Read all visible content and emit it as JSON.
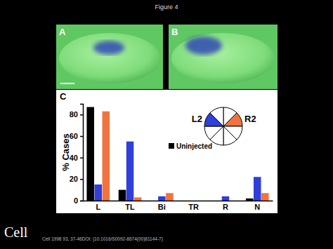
{
  "figure": {
    "title": "Figure 4",
    "panels": [
      "A",
      "B",
      "C"
    ],
    "logo": "Cell",
    "citation": "Cell 1998 93, 37-46DOI: (10.1016/S0092-8674(00)81144-7)"
  },
  "chart_data": {
    "type": "bar",
    "ylabel": "% Cases",
    "categories": [
      "L",
      "TL",
      "Bi",
      "TR",
      "R",
      "N"
    ],
    "series": [
      {
        "name": "Uninjected",
        "color": "#000000",
        "values": [
          87,
          10,
          0,
          0,
          0,
          2
        ]
      },
      {
        "name": "L2",
        "color": "#2f3fd8",
        "values": [
          15,
          55,
          4,
          0,
          4,
          22
        ]
      },
      {
        "name": "R2",
        "color": "#f2733f",
        "values": [
          83,
          3,
          7,
          0,
          0,
          7
        ]
      }
    ],
    "ylim": [
      0,
      90
    ],
    "yticks": [
      0,
      20,
      40,
      60,
      80
    ],
    "legend": "top-right"
  }
}
